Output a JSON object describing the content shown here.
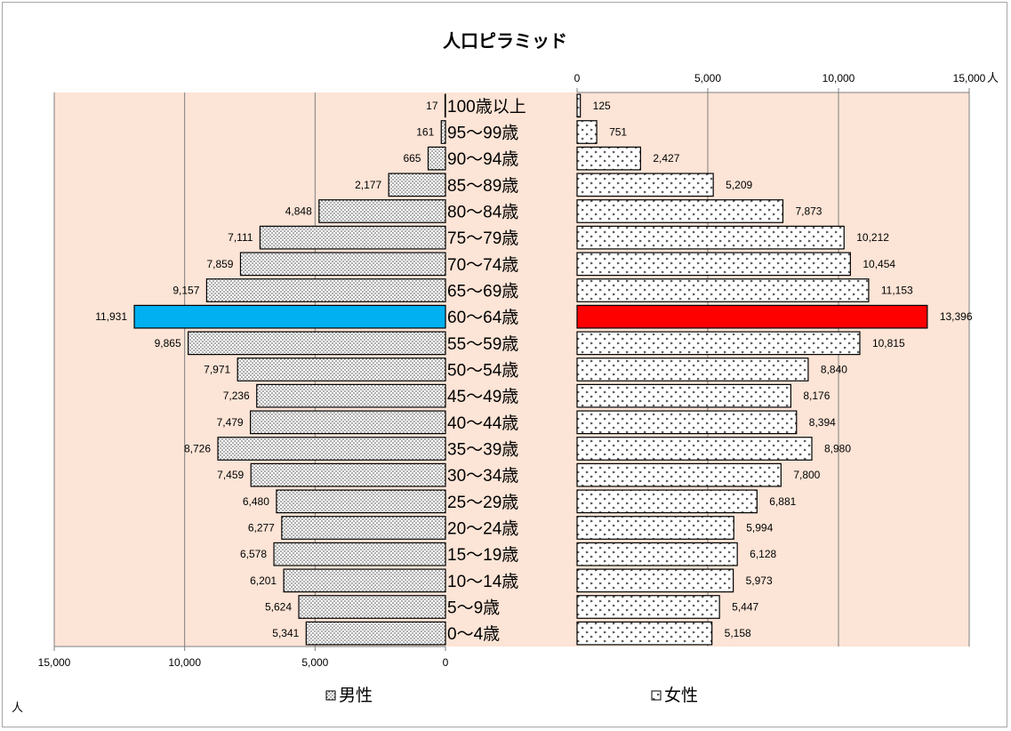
{
  "chart_data": {
    "type": "bar",
    "title": "人口ピラミッド",
    "unit_label": "人",
    "categories": [
      "100歳以上",
      "95～99歳",
      "90～94歳",
      "85～89歳",
      "80～84歳",
      "75～79歳",
      "70～74歳",
      "65～69歳",
      "60～64歳",
      "55～59歳",
      "50～54歳",
      "45～49歳",
      "40～44歳",
      "35～39歳",
      "30～34歳",
      "25～29歳",
      "20～24歳",
      "15～19歳",
      "10～14歳",
      "5～9歳",
      "0～4歳"
    ],
    "series": [
      {
        "name": "男性",
        "values": [
          17,
          161,
          665,
          2177,
          4848,
          7111,
          7859,
          9157,
          11931,
          9865,
          7971,
          7236,
          7479,
          8726,
          7459,
          6480,
          6277,
          6578,
          6201,
          5624,
          5341
        ],
        "labels": [
          "17",
          "161",
          "665",
          "2,177",
          "4,848",
          "7,111",
          "7,859",
          "9,157",
          "11,931",
          "9,865",
          "7,971",
          "7,236",
          "7,479",
          "8,726",
          "7,459",
          "6,480",
          "6,277",
          "6,578",
          "6,201",
          "5,624",
          "5,341"
        ],
        "highlight_color": "#00b0f0"
      },
      {
        "name": "女性",
        "values": [
          125,
          751,
          2427,
          5209,
          7873,
          10212,
          10454,
          11153,
          13396,
          10815,
          8840,
          8176,
          8394,
          8980,
          7800,
          6881,
          5994,
          6128,
          5973,
          5447,
          5158
        ],
        "labels": [
          "125",
          "751",
          "2,427",
          "5,209",
          "7,873",
          "10,212",
          "10,454",
          "11,153",
          "13,396",
          "10,815",
          "8,840",
          "8,176",
          "8,394",
          "8,980",
          "7,800",
          "6,881",
          "5,994",
          "6,128",
          "5,973",
          "5,447",
          "5,158"
        ],
        "highlight_color": "#ff0000"
      }
    ],
    "highlight_category": "60～64歳",
    "male_axis": {
      "ticks": [
        15000,
        10000,
        5000,
        0
      ],
      "tick_labels": [
        "15,000",
        "10,000",
        "5,000",
        "0"
      ],
      "range": [
        0,
        15000
      ],
      "position": "bottom"
    },
    "female_axis": {
      "ticks": [
        0,
        5000,
        10000,
        15000
      ],
      "tick_labels": [
        "0",
        "5,000",
        "10,000",
        "15,000"
      ],
      "range": [
        0,
        15000
      ],
      "position": "top"
    },
    "plot_background": "#fce4d6",
    "grid": true,
    "legend_position": "bottom"
  }
}
